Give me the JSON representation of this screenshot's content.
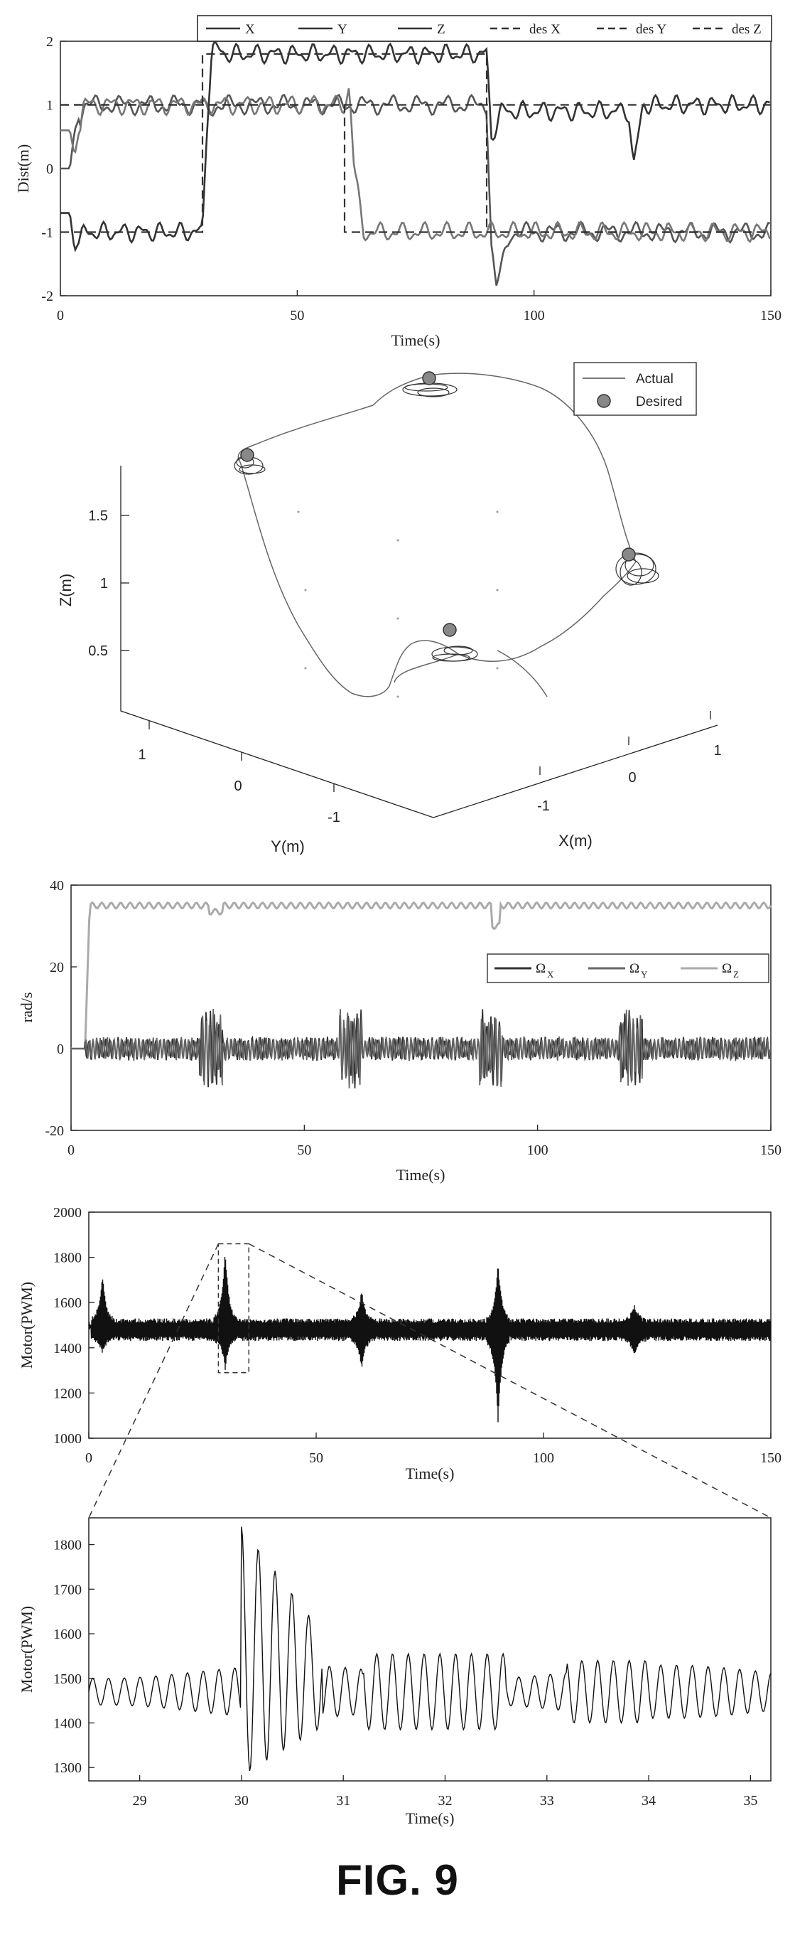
{
  "figure_label": "FIG. 9",
  "chart_data": [
    {
      "id": "position",
      "type": "line",
      "title": "",
      "xlabel": "Time(s)",
      "ylabel": "Dist(m)",
      "xlim": [
        0,
        150
      ],
      "ylim": [
        -2,
        2
      ],
      "xticks": [
        "0",
        "50",
        "100",
        "150"
      ],
      "yticks": [
        "-2",
        "-1",
        "0",
        "1",
        "2"
      ],
      "legend_position": "top",
      "series": [
        {
          "name": "X",
          "style": "solid",
          "x": [
            0,
            2,
            3,
            5,
            30,
            31,
            33,
            60,
            90,
            91,
            92,
            95,
            150
          ],
          "values": [
            0,
            0,
            0.6,
            1,
            1,
            0.9,
            1,
            1,
            1,
            -1.2,
            -1.9,
            -1,
            -1
          ]
        },
        {
          "name": "Y",
          "style": "solid",
          "x": [
            0,
            2,
            3,
            5,
            60,
            61,
            62,
            64,
            150
          ],
          "values": [
            0.6,
            0.6,
            0.2,
            1,
            1,
            1.3,
            0,
            -1,
            -1
          ]
        },
        {
          "name": "Z",
          "style": "solid",
          "x": [
            0,
            2,
            3,
            5,
            30,
            31,
            32,
            35,
            90,
            91,
            93,
            120,
            121,
            123,
            150
          ],
          "values": [
            -0.7,
            -0.7,
            -1.3,
            -1,
            -1,
            0.8,
            1.9,
            1.8,
            1.8,
            0.5,
            0.9,
            0.9,
            0,
            1,
            1
          ]
        },
        {
          "name": "des X",
          "style": "dashed",
          "x": [
            0,
            90,
            90,
            150
          ],
          "values": [
            1,
            1,
            -1,
            -1
          ]
        },
        {
          "name": "des Y",
          "style": "dashed",
          "x": [
            0,
            60,
            60,
            150
          ],
          "values": [
            1,
            1,
            -1,
            -1
          ]
        },
        {
          "name": "des Z",
          "style": "dashed",
          "x": [
            0,
            30,
            30,
            90,
            90,
            120,
            120,
            150
          ],
          "values": [
            -1,
            -1,
            1.8,
            1.8,
            1,
            1,
            1,
            1
          ]
        }
      ]
    },
    {
      "id": "trajectory3d",
      "type": "line",
      "title": "",
      "xlabel": "X(m)",
      "ylabel": "Y(m)",
      "zlabel": "Z(m)",
      "xticks": [
        "-1",
        "0",
        "1"
      ],
      "yticks": [
        "1",
        "0",
        "-1"
      ],
      "zticks": [
        "1.5",
        "1",
        "0.5"
      ],
      "legend_position": "top-right",
      "series": [
        {
          "name": "Actual"
        },
        {
          "name": "Desired"
        }
      ]
    },
    {
      "id": "rates",
      "type": "line",
      "title": "",
      "xlabel": "Time(s)",
      "ylabel": "rad/s",
      "xlim": [
        0,
        150
      ],
      "ylim": [
        -20,
        40
      ],
      "xticks": [
        "0",
        "50",
        "100",
        "150"
      ],
      "yticks": [
        "-20",
        "0",
        "20",
        "40"
      ],
      "legend_position": "right",
      "series": [
        {
          "name": "Ω",
          "subscript": "X",
          "baseline": 0,
          "amplitude": 3
        },
        {
          "name": "Ω",
          "subscript": "Y",
          "baseline": 0,
          "amplitude": 3
        },
        {
          "name": "Ω",
          "subscript": "Z",
          "x": [
            0,
            3,
            4,
            150
          ],
          "values": [
            0,
            0,
            35,
            35
          ]
        }
      ]
    },
    {
      "id": "motor",
      "type": "line",
      "title": "",
      "xlabel": "Time(s)",
      "ylabel": "Motor(PWM)",
      "xlim": [
        0,
        150
      ],
      "ylim": [
        1000,
        2000
      ],
      "xticks": [
        "0",
        "50",
        "100",
        "150"
      ],
      "yticks": [
        "1000",
        "1200",
        "1400",
        "1600",
        "1800",
        "2000"
      ],
      "baseline": 1480,
      "spikes": [
        {
          "x": 3,
          "max": 1730,
          "min": 1370
        },
        {
          "x": 30,
          "max": 1840,
          "min": 1300
        },
        {
          "x": 60,
          "max": 1660,
          "min": 1300
        },
        {
          "x": 90,
          "max": 1790,
          "min": 1060
        },
        {
          "x": 120,
          "max": 1600,
          "min": 1350
        }
      ],
      "zoom_box": {
        "x": [
          28.5,
          35.2
        ],
        "y": [
          1290,
          1860
        ]
      }
    },
    {
      "id": "motor_zoom",
      "type": "line",
      "title": "",
      "xlabel": "Time(s)",
      "ylabel": "Motor(PWM)",
      "xlim": [
        28.5,
        35.2
      ],
      "ylim": [
        1270,
        1860
      ],
      "xticks": [
        "29",
        "30",
        "31",
        "32",
        "33",
        "34",
        "35"
      ],
      "yticks": [
        "1300",
        "1400",
        "1500",
        "1600",
        "1700",
        "1800"
      ],
      "baseline": 1470,
      "period": 0.155,
      "peaks": [
        {
          "x": 30.05,
          "value": 1850
        },
        {
          "x": 30.22,
          "value": 1820
        },
        {
          "x": 30.38,
          "value": 1710
        },
        {
          "x": 30.53,
          "value": 1640
        }
      ]
    }
  ]
}
